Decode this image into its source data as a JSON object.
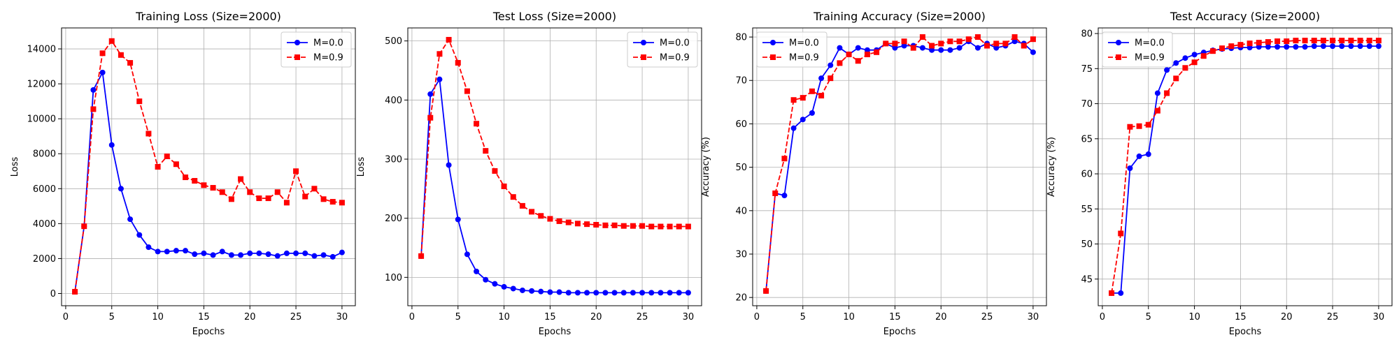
{
  "chart_data": [
    {
      "type": "line",
      "title": "Training Loss (Size=2000)",
      "xlabel": "Epochs",
      "ylabel": "Loss",
      "xlim": [
        -0.45,
        31.45
      ],
      "ylim": [
        -700,
        15200
      ],
      "xticks": [
        0,
        5,
        10,
        15,
        20,
        25,
        30
      ],
      "yticks": [
        0,
        2000,
        4000,
        6000,
        8000,
        10000,
        12000,
        14000
      ],
      "grid": true,
      "legend": "top-right",
      "x": [
        1,
        2,
        3,
        4,
        5,
        6,
        7,
        8,
        9,
        10,
        11,
        12,
        13,
        14,
        15,
        16,
        17,
        18,
        19,
        20,
        21,
        22,
        23,
        24,
        25,
        26,
        27,
        28,
        29,
        30
      ],
      "series": [
        {
          "name": "M=0.0",
          "color": "#0000ff",
          "marker": "circle",
          "linestyle": "solid",
          "values": [
            100,
            3850,
            11650,
            12650,
            8500,
            6000,
            4250,
            3350,
            2650,
            2400,
            2400,
            2450,
            2450,
            2250,
            2300,
            2200,
            2400,
            2200,
            2200,
            2300,
            2300,
            2250,
            2150,
            2300,
            2300,
            2300,
            2150,
            2200,
            2100,
            2350
          ]
        },
        {
          "name": "M=0.9",
          "color": "#ff0000",
          "marker": "square",
          "linestyle": "dashed",
          "values": [
            100,
            3850,
            10550,
            13750,
            14450,
            13650,
            13200,
            11000,
            9150,
            7250,
            7850,
            7400,
            6650,
            6450,
            6200,
            6050,
            5800,
            5400,
            6550,
            5800,
            5450,
            5450,
            5800,
            5200,
            7000,
            5550,
            6000,
            5400,
            5250,
            5200
          ]
        }
      ]
    },
    {
      "type": "line",
      "title": "Test Loss (Size=2000)",
      "xlabel": "Epochs",
      "ylabel": "Loss",
      "xlim": [
        -0.45,
        31.45
      ],
      "ylim": [
        52,
        522
      ],
      "xticks": [
        0,
        5,
        10,
        15,
        20,
        25,
        30
      ],
      "yticks": [
        100,
        200,
        300,
        400,
        500
      ],
      "grid": true,
      "legend": "top-right",
      "x": [
        1,
        2,
        3,
        4,
        5,
        6,
        7,
        8,
        9,
        10,
        11,
        12,
        13,
        14,
        15,
        16,
        17,
        18,
        19,
        20,
        21,
        22,
        23,
        24,
        25,
        26,
        27,
        28,
        29,
        30
      ],
      "series": [
        {
          "name": "M=0.0",
          "color": "#0000ff",
          "marker": "circle",
          "linestyle": "solid",
          "values": [
            136,
            410,
            435,
            290,
            198,
            139,
            110,
            96,
            89,
            84,
            81,
            78,
            77,
            76,
            75,
            75,
            74,
            74,
            74,
            74,
            74,
            74,
            74,
            74,
            74,
            74,
            74,
            74,
            74,
            74
          ]
        },
        {
          "name": "M=0.9",
          "color": "#ff0000",
          "marker": "square",
          "linestyle": "dashed",
          "values": [
            136,
            370,
            478,
            502,
            463,
            415,
            360,
            314,
            280,
            254,
            236,
            221,
            211,
            204,
            199,
            195,
            193,
            191,
            190,
            189,
            188,
            188,
            187,
            187,
            187,
            186,
            186,
            186,
            186,
            186
          ]
        }
      ]
    },
    {
      "type": "line",
      "title": "Training Accuracy (Size=2000)",
      "xlabel": "Epochs",
      "ylabel": "Accuracy (%)",
      "xlim": [
        -0.45,
        31.45
      ],
      "ylim": [
        18.1,
        82.1
      ],
      "xticks": [
        0,
        5,
        10,
        15,
        20,
        25,
        30
      ],
      "yticks": [
        20,
        30,
        40,
        50,
        60,
        70,
        80
      ],
      "grid": true,
      "legend": "top-left",
      "x": [
        1,
        2,
        3,
        4,
        5,
        6,
        7,
        8,
        9,
        10,
        11,
        12,
        13,
        14,
        15,
        16,
        17,
        18,
        19,
        20,
        21,
        22,
        23,
        24,
        25,
        26,
        27,
        28,
        29,
        30
      ],
      "series": [
        {
          "name": "M=0.0",
          "color": "#0000ff",
          "marker": "circle",
          "linestyle": "solid",
          "values": [
            21.5,
            44.0,
            43.5,
            59.0,
            61.0,
            62.5,
            70.5,
            73.5,
            77.5,
            76.0,
            77.5,
            77.0,
            77.0,
            78.5,
            77.5,
            78.0,
            78.0,
            77.5,
            77.0,
            77.0,
            77.0,
            77.5,
            79.0,
            77.5,
            78.5,
            77.5,
            78.0,
            79.0,
            78.5,
            76.5
          ]
        },
        {
          "name": "M=0.9",
          "color": "#ff0000",
          "marker": "square",
          "linestyle": "dashed",
          "values": [
            21.5,
            44.0,
            52.0,
            65.5,
            66.0,
            67.5,
            66.5,
            70.5,
            74.0,
            76.0,
            74.5,
            76.0,
            76.5,
            78.5,
            78.5,
            79.0,
            77.5,
            80.0,
            78.0,
            78.5,
            79.0,
            79.0,
            79.5,
            80.0,
            78.0,
            78.5,
            78.5,
            80.0,
            78.0,
            79.5
          ]
        }
      ]
    },
    {
      "type": "line",
      "title": "Test Accuracy (Size=2000)",
      "xlabel": "Epochs",
      "ylabel": "Accuracy (%)",
      "xlim": [
        -0.45,
        31.45
      ],
      "ylim": [
        41.2,
        80.8
      ],
      "xticks": [
        0,
        5,
        10,
        15,
        20,
        25,
        30
      ],
      "yticks": [
        45,
        50,
        55,
        60,
        65,
        70,
        75,
        80
      ],
      "grid": true,
      "legend": "top-left",
      "x": [
        1,
        2,
        3,
        4,
        5,
        6,
        7,
        8,
        9,
        10,
        11,
        12,
        13,
        14,
        15,
        16,
        17,
        18,
        19,
        20,
        21,
        22,
        23,
        24,
        25,
        26,
        27,
        28,
        29,
        30
      ],
      "series": [
        {
          "name": "M=0.0",
          "color": "#0000ff",
          "marker": "circle",
          "linestyle": "solid",
          "values": [
            43.0,
            43.0,
            60.8,
            62.5,
            62.8,
            71.5,
            74.8,
            75.8,
            76.5,
            77.0,
            77.3,
            77.6,
            77.8,
            77.9,
            78.0,
            78.0,
            78.1,
            78.1,
            78.1,
            78.1,
            78.1,
            78.1,
            78.2,
            78.2,
            78.2,
            78.2,
            78.2,
            78.2,
            78.2,
            78.2
          ]
        },
        {
          "name": "M=0.9",
          "color": "#ff0000",
          "marker": "square",
          "linestyle": "dashed",
          "values": [
            43.0,
            51.5,
            66.7,
            66.8,
            67.0,
            69.0,
            71.5,
            73.6,
            75.1,
            75.9,
            76.8,
            77.5,
            77.9,
            78.2,
            78.4,
            78.6,
            78.7,
            78.8,
            78.9,
            78.9,
            79.0,
            79.0,
            79.0,
            79.0,
            79.0,
            79.0,
            79.0,
            79.0,
            79.0,
            79.0
          ]
        }
      ]
    }
  ]
}
